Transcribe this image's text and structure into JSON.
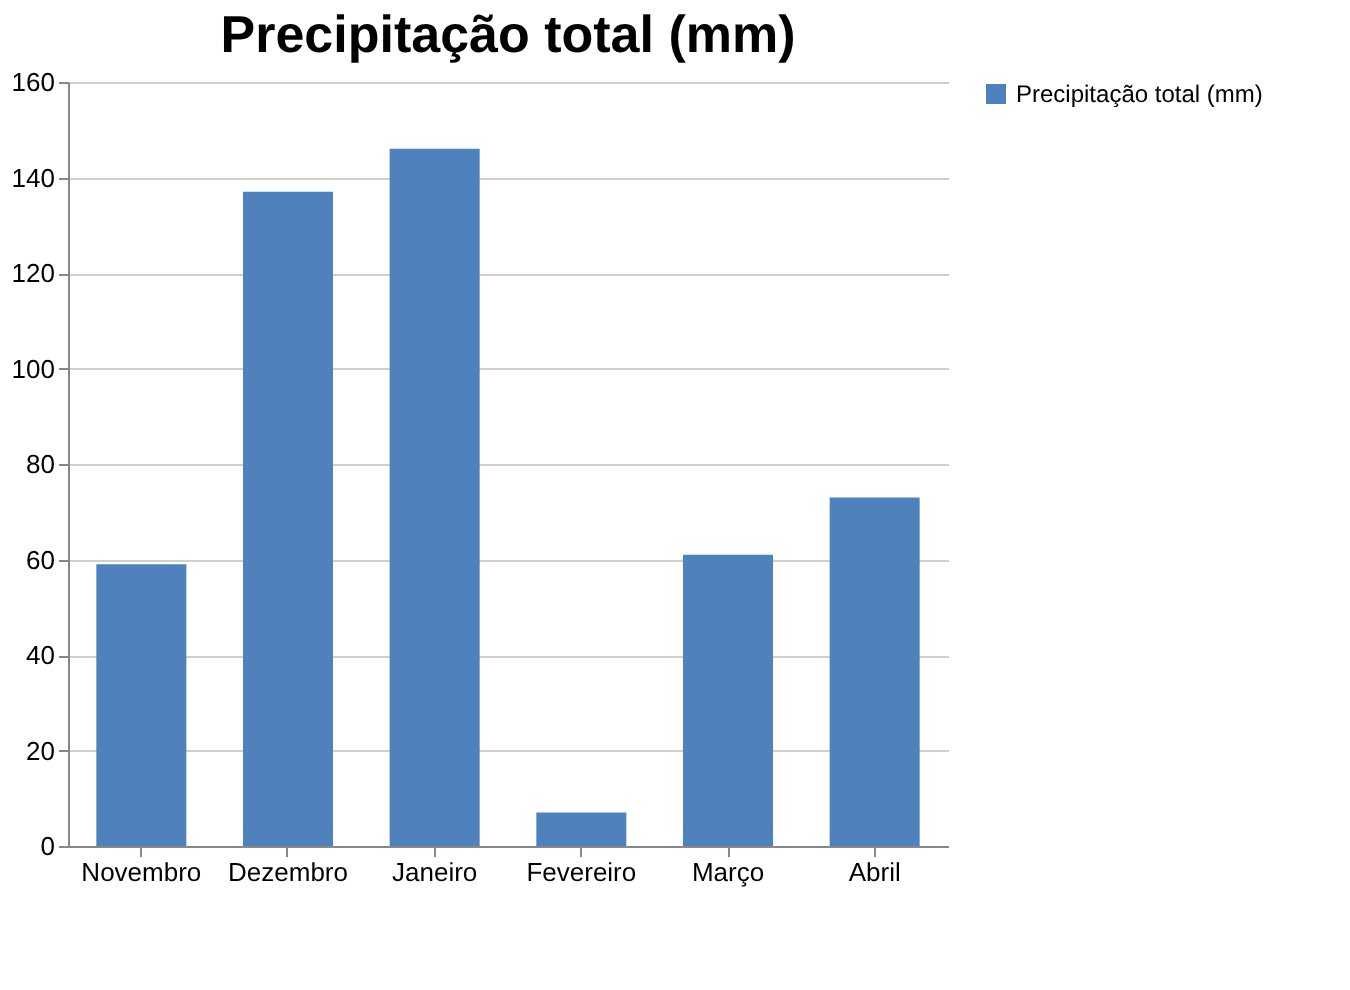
{
  "chart_data": {
    "type": "bar",
    "title": "Precipitação total (mm)",
    "categories": [
      "Novembro",
      "Dezembro",
      "Janeiro",
      "Fevereiro",
      "Março",
      "Abril"
    ],
    "series": [
      {
        "name": "Precipitação total (mm)",
        "color": "#4f81bd",
        "values": [
          59,
          137,
          146,
          7,
          61,
          73
        ]
      }
    ],
    "ylim": [
      0,
      160
    ],
    "yticks": [
      0,
      20,
      40,
      60,
      80,
      100,
      120,
      140,
      160
    ],
    "grid": "y",
    "legend": "right"
  }
}
